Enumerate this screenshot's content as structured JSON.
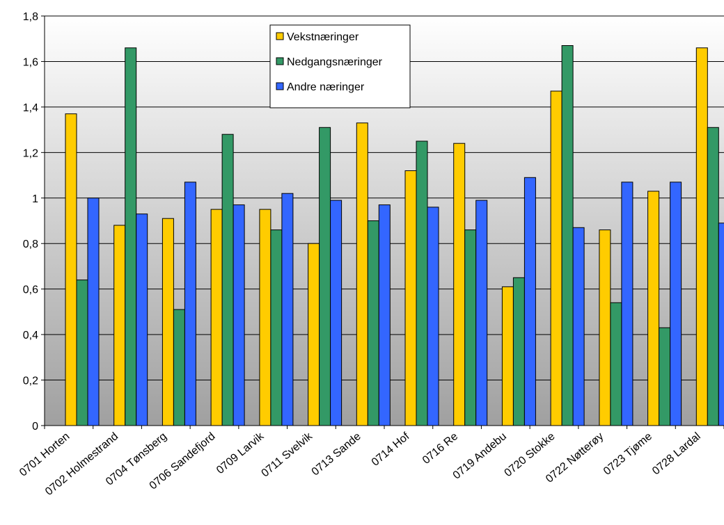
{
  "chart_data": {
    "type": "bar",
    "title": "",
    "xlabel": "",
    "ylabel": "",
    "ylim": [
      0,
      1.8
    ],
    "yticks": [
      "0",
      "0,2",
      "0,4",
      "0,6",
      "0,8",
      "1",
      "1,2",
      "1,4",
      "1,6",
      "1,8"
    ],
    "grid": true,
    "legend_position": "top-center",
    "categories": [
      "0701 Horten",
      "0702 Holmestrand",
      "0704 Tønsberg",
      "0706 Sandefjord",
      "0709 Larvik",
      "0711 Svelvik",
      "0713 Sande",
      "0714 Hof",
      "0716 Re",
      "0719 Andebu",
      "0720 Stokke",
      "0722 Nøtterøy",
      "0723 Tjøme",
      "0728 Lardal"
    ],
    "series": [
      {
        "name": "Vekstnæringer",
        "color": "#FFCC00",
        "values": [
          1.37,
          0.88,
          0.91,
          0.95,
          0.95,
          0.8,
          1.33,
          1.12,
          1.24,
          0.61,
          1.47,
          0.86,
          1.03,
          1.66
        ]
      },
      {
        "name": "Nedgangsnæringer",
        "color": "#339966",
        "values": [
          0.64,
          1.66,
          0.51,
          1.28,
          0.86,
          1.31,
          0.9,
          1.25,
          0.86,
          0.65,
          1.67,
          0.54,
          0.43,
          1.31
        ]
      },
      {
        "name": "Andre næringer",
        "color": "#3366FF",
        "values": [
          1.0,
          0.93,
          1.07,
          0.97,
          1.02,
          0.99,
          0.97,
          0.96,
          0.99,
          1.09,
          0.87,
          1.07,
          1.07,
          0.89
        ]
      }
    ],
    "plot_background": {
      "top": "#ffffff",
      "bottom": "#a0a0a0"
    }
  }
}
